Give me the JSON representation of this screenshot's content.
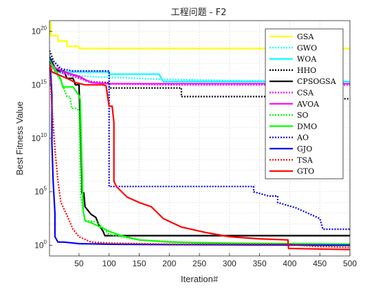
{
  "chart_data": {
    "type": "line",
    "title": "工程问题 - F2",
    "xlabel": "Iteration#",
    "ylabel": "Best Fitness Value",
    "xlim": [
      1,
      500
    ],
    "ylim_exp": [
      -1,
      21
    ],
    "yscale": "log",
    "grid": true,
    "legend_position": "top-right",
    "x_ticks": [
      {
        "label": "50",
        "value": 50
      },
      {
        "label": "100",
        "value": 100
      },
      {
        "label": "150",
        "value": 150
      },
      {
        "label": "200",
        "value": 200
      },
      {
        "label": "250",
        "value": 250
      },
      {
        "label": "300",
        "value": 300
      },
      {
        "label": "350",
        "value": 350
      },
      {
        "label": "400",
        "value": 400
      },
      {
        "label": "450",
        "value": 450
      },
      {
        "label": "500",
        "value": 500
      }
    ],
    "y_ticks": [
      {
        "base": "10",
        "exp": "0",
        "value": 0
      },
      {
        "base": "10",
        "exp": "5",
        "value": 5
      },
      {
        "base": "10",
        "exp": "10",
        "value": 10
      },
      {
        "base": "10",
        "exp": "15",
        "value": 15
      },
      {
        "base": "10",
        "exp": "20",
        "value": 20
      }
    ],
    "series": [
      {
        "name": "GSA",
        "color": "#FFFF00",
        "dash": "solid",
        "points": [
          [
            1,
            20.8
          ],
          [
            3,
            20.8
          ],
          [
            3,
            19.6
          ],
          [
            15,
            19.6
          ],
          [
            15,
            19.1
          ],
          [
            30,
            19.1
          ],
          [
            30,
            18.6
          ],
          [
            50,
            18.6
          ],
          [
            50,
            18.4
          ],
          [
            500,
            18.4
          ]
        ]
      },
      {
        "name": "GWO",
        "color": "#00FFFF",
        "dash": "dot",
        "points": [
          [
            1,
            17.8
          ],
          [
            5,
            16.8
          ],
          [
            15,
            16.2
          ],
          [
            30,
            15.9
          ],
          [
            60,
            15.8
          ],
          [
            100,
            15.7
          ],
          [
            200,
            15.5
          ],
          [
            300,
            15.4
          ],
          [
            500,
            15.3
          ]
        ]
      },
      {
        "name": "WOA",
        "color": "#00FFFF",
        "dash": "solid",
        "points": [
          [
            1,
            16.8
          ],
          [
            10,
            16.5
          ],
          [
            10,
            16.2
          ],
          [
            100,
            16.2
          ],
          [
            100,
            16.0
          ],
          [
            183,
            16.0
          ],
          [
            190,
            15.3
          ],
          [
            500,
            15.3
          ]
        ]
      },
      {
        "name": "HHO",
        "color": "#000000",
        "dash": "dot",
        "points": [
          [
            1,
            18.2
          ],
          [
            8,
            17.2
          ],
          [
            20,
            16.4
          ],
          [
            40,
            15.9
          ],
          [
            65,
            15.3
          ],
          [
            100,
            15.2
          ],
          [
            100,
            14.7
          ],
          [
            220,
            14.7
          ],
          [
            220,
            13.9
          ],
          [
            460,
            13.9
          ],
          [
            460,
            13.7
          ],
          [
            500,
            13.7
          ]
        ]
      },
      {
        "name": "CPSOGSA",
        "color": "#000000",
        "dash": "solid",
        "points": [
          [
            1,
            17.6
          ],
          [
            10,
            16.6
          ],
          [
            15,
            16.3
          ],
          [
            25,
            16.3
          ],
          [
            30,
            15.6
          ],
          [
            40,
            15.6
          ],
          [
            44,
            15.0
          ],
          [
            50,
            15.0
          ],
          [
            55,
            5.8
          ],
          [
            55,
            4.9
          ],
          [
            58,
            4.9
          ],
          [
            60,
            3.6
          ],
          [
            70,
            2.9
          ],
          [
            78,
            2.6
          ],
          [
            83,
            1.9
          ],
          [
            90,
            1.3
          ],
          [
            93,
            0.9
          ],
          [
            500,
            0.9
          ]
        ]
      },
      {
        "name": "CSA",
        "color": "#FF00FF",
        "dash": "dot",
        "points": [
          [
            1,
            17.0
          ],
          [
            10,
            16.3
          ],
          [
            30,
            16.0
          ],
          [
            50,
            15.6
          ],
          [
            70,
            15.3
          ],
          [
            100,
            15.1
          ],
          [
            200,
            15.0
          ],
          [
            500,
            15.0
          ]
        ]
      },
      {
        "name": "AVOA",
        "color": "#FF00FF",
        "dash": "solid",
        "points": [
          [
            1,
            17.2
          ],
          [
            10,
            16.6
          ],
          [
            25,
            16.2
          ],
          [
            50,
            15.8
          ],
          [
            70,
            15.2
          ],
          [
            100,
            15.1
          ],
          [
            500,
            15.1
          ]
        ]
      },
      {
        "name": "SO",
        "color": "#00FF00",
        "dash": "dot",
        "points": [
          [
            1,
            17.5
          ],
          [
            10,
            16.2
          ],
          [
            20,
            15.4
          ],
          [
            30,
            13.9
          ],
          [
            35,
            13.9
          ],
          [
            38,
            12.8
          ],
          [
            45,
            12.8
          ],
          [
            50,
            12.6
          ],
          [
            53,
            4.5
          ],
          [
            60,
            2.3
          ],
          [
            80,
            2.2
          ],
          [
            90,
            1.6
          ],
          [
            100,
            1.0
          ],
          [
            150,
            0.5
          ],
          [
            250,
            0.2
          ],
          [
            300,
            0.15
          ],
          [
            400,
            0.1
          ],
          [
            500,
            0.1
          ]
        ]
      },
      {
        "name": "DMO",
        "color": "#00FF00",
        "dash": "solid",
        "points": [
          [
            1,
            17.2
          ],
          [
            10,
            16.5
          ],
          [
            20,
            15.5
          ],
          [
            23,
            14.8
          ],
          [
            40,
            14.8
          ],
          [
            50,
            14.0
          ],
          [
            52,
            13.6
          ],
          [
            57,
            3.2
          ],
          [
            60,
            2.3
          ],
          [
            70,
            2.1
          ],
          [
            90,
            1.6
          ],
          [
            100,
            1.3
          ],
          [
            120,
            0.9
          ],
          [
            150,
            0.5
          ],
          [
            200,
            0.3
          ],
          [
            300,
            0.2
          ],
          [
            400,
            0.15
          ],
          [
            500,
            0.1
          ]
        ]
      },
      {
        "name": "AO",
        "color": "#0000FF",
        "dash": "dot",
        "points": [
          [
            1,
            17.6
          ],
          [
            20,
            16.5
          ],
          [
            40,
            16.3
          ],
          [
            60,
            16.3
          ],
          [
            100,
            16.3
          ],
          [
            100,
            5.5
          ],
          [
            340,
            5.5
          ],
          [
            340,
            5.0
          ],
          [
            365,
            4.6
          ],
          [
            380,
            4.6
          ],
          [
            380,
            4.0
          ],
          [
            410,
            3.5
          ],
          [
            430,
            3.0
          ],
          [
            450,
            2.5
          ],
          [
            455,
            1.5
          ],
          [
            500,
            1.5
          ]
        ]
      },
      {
        "name": "GJO",
        "color": "#0000FF",
        "dash": "solid",
        "points": [
          [
            1,
            17.2
          ],
          [
            3,
            16.0
          ],
          [
            5,
            14.0
          ],
          [
            5,
            9.5
          ],
          [
            7,
            6.0
          ],
          [
            10,
            3.0
          ],
          [
            10,
            0.8
          ],
          [
            15,
            0.3
          ],
          [
            25,
            0.3
          ],
          [
            50,
            0.15
          ],
          [
            100,
            0.1
          ],
          [
            200,
            0.06
          ],
          [
            300,
            0.04
          ],
          [
            400,
            0.02
          ],
          [
            500,
            0.0
          ]
        ]
      },
      {
        "name": "TSA",
        "color": "#FF0000",
        "dash": "dot",
        "points": [
          [
            1,
            17.0
          ],
          [
            5,
            13.0
          ],
          [
            10,
            9.0
          ],
          [
            15,
            6.0
          ],
          [
            20,
            4.0
          ],
          [
            30,
            2.8
          ],
          [
            40,
            1.5
          ],
          [
            50,
            0.8
          ],
          [
            70,
            0.3
          ],
          [
            100,
            0.2
          ],
          [
            200,
            0.1
          ],
          [
            300,
            0.1
          ],
          [
            400,
            0.1
          ],
          [
            415,
            0.0
          ],
          [
            440,
            -0.1
          ],
          [
            500,
            -0.2
          ]
        ]
      },
      {
        "name": "GTO",
        "color": "#FF0000",
        "dash": "solid",
        "points": [
          [
            1,
            17.0
          ],
          [
            5,
            16.2
          ],
          [
            30,
            15.6
          ],
          [
            45,
            15.2
          ],
          [
            60,
            15.0
          ],
          [
            90,
            15.0
          ],
          [
            95,
            14.9
          ],
          [
            100,
            13.0
          ],
          [
            105,
            13.0
          ],
          [
            108,
            11.5
          ],
          [
            108,
            6.0
          ],
          [
            112,
            5.5
          ],
          [
            130,
            4.5
          ],
          [
            150,
            4.0
          ],
          [
            170,
            3.6
          ],
          [
            190,
            2.5
          ],
          [
            220,
            1.7
          ],
          [
            260,
            1.2
          ],
          [
            300,
            0.8
          ],
          [
            350,
            0.6
          ],
          [
            397,
            0.5
          ],
          [
            398,
            -0.3
          ],
          [
            500,
            -0.4
          ]
        ]
      }
    ]
  }
}
